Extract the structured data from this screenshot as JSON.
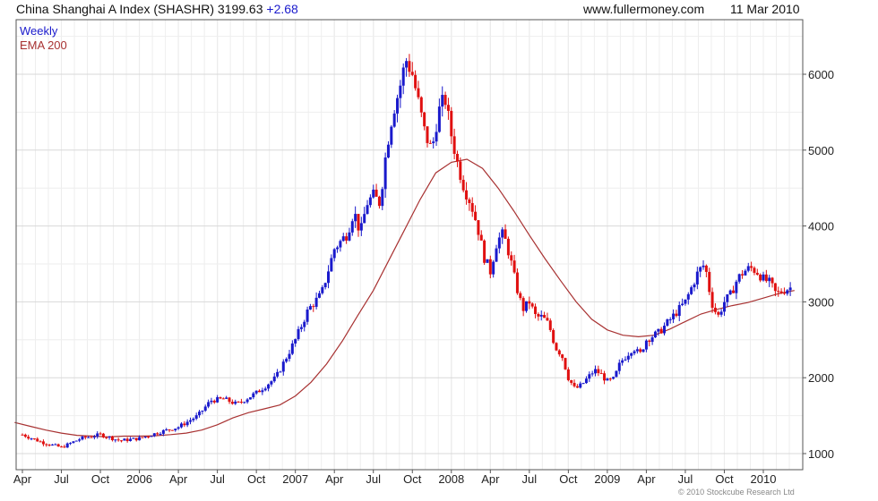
{
  "header": {
    "title": "China Shanghai A Index (SHASHR) 3199.63",
    "change": "+2.68",
    "site": "www.fullermoney.com",
    "date": "11 Mar 2010"
  },
  "legend": {
    "weekly": "Weekly",
    "ema": "EMA 200"
  },
  "copyright": "© 2010 Stockcube Research Ltd",
  "colors": {
    "up": "#1a1acc",
    "down": "#e01010",
    "ema": "#a83232",
    "grid": "#d8d8d8",
    "frame": "#555555"
  },
  "chart_data": {
    "type": "candlestick",
    "title": "China Shanghai A Index (SHASHR) 3199.63 +2.68",
    "frequency": "Weekly",
    "x_ticks": [
      "Apr",
      "Jul",
      "Oct",
      "2006",
      "Apr",
      "Jul",
      "Oct",
      "2007",
      "Apr",
      "Jul",
      "Oct",
      "2008",
      "Apr",
      "Jul",
      "Oct",
      "2009",
      "Apr",
      "Jul",
      "Oct",
      "2010"
    ],
    "y_ticks": [
      "1000",
      "2000",
      "3000",
      "4000",
      "5000",
      "6000"
    ],
    "ylim": [
      850,
      6700
    ],
    "y_axis_side": "right",
    "grid": true,
    "series": [
      {
        "name": "Weekly",
        "kind": "close",
        "x": [
          2005.25,
          2005.375,
          2005.5,
          2005.625,
          2005.75,
          2005.875,
          2006.0,
          2006.125,
          2006.25,
          2006.375,
          2006.458,
          2006.542,
          2006.625,
          2006.75,
          2006.875,
          2007.0,
          2007.083,
          2007.125,
          2007.167,
          2007.25,
          2007.333,
          2007.375,
          2007.417,
          2007.458,
          2007.5,
          2007.542,
          2007.583,
          2007.625,
          2007.667,
          2007.708,
          2007.75,
          2007.792,
          2007.833,
          2007.875,
          2007.917,
          2007.958,
          2008.0,
          2008.042,
          2008.083,
          2008.125,
          2008.167,
          2008.208,
          2008.25,
          2008.292,
          2008.333,
          2008.375,
          2008.417,
          2008.458,
          2008.5,
          2008.542,
          2008.583,
          2008.625,
          2008.667,
          2008.708,
          2008.75,
          2008.792,
          2008.833,
          2008.875,
          2008.917,
          2008.958,
          2009.0,
          2009.042,
          2009.083,
          2009.125,
          2009.167,
          2009.208,
          2009.25,
          2009.333,
          2009.417,
          2009.5,
          2009.542,
          2009.583,
          2009.625,
          2009.667,
          2009.708,
          2009.75,
          2009.792,
          2009.833,
          2009.875,
          2009.917,
          2009.958,
          2010.0,
          2010.042,
          2010.083,
          2010.125,
          2010.19
        ],
        "values": [
          1250,
          1150,
          1080,
          1200,
          1250,
          1170,
          1200,
          1280,
          1350,
          1500,
          1700,
          1720,
          1650,
          1800,
          2000,
          2500,
          2900,
          3000,
          3100,
          3700,
          3900,
          4200,
          3900,
          4300,
          4400,
          4300,
          5000,
          5500,
          5800,
          6200,
          6000,
          5600,
          5200,
          5000,
          5500,
          5700,
          5200,
          4800,
          4500,
          4300,
          4000,
          3600,
          3400,
          3800,
          3900,
          3600,
          3200,
          2900,
          3000,
          2800,
          2800,
          2700,
          2400,
          2300,
          2000,
          1850,
          1900,
          2000,
          2100,
          2050,
          1950,
          1980,
          2200,
          2300,
          2400,
          2300,
          2500,
          2600,
          2800,
          3000,
          3200,
          3400,
          3500,
          3000,
          2800,
          3000,
          3100,
          3300,
          3400,
          3450,
          3400,
          3300,
          3250,
          3100,
          3150,
          3200
        ]
      },
      {
        "name": "EMA 200",
        "kind": "line",
        "x": [
          2005.2,
          2005.3,
          2005.4,
          2005.5,
          2005.6,
          2005.7,
          2005.8,
          2005.9,
          2006.0,
          2006.1,
          2006.2,
          2006.3,
          2006.4,
          2006.5,
          2006.6,
          2006.7,
          2006.8,
          2006.9,
          2007.0,
          2007.1,
          2007.2,
          2007.3,
          2007.4,
          2007.5,
          2007.6,
          2007.7,
          2007.8,
          2007.9,
          2008.0,
          2008.1,
          2008.2,
          2008.3,
          2008.4,
          2008.5,
          2008.6,
          2008.7,
          2008.8,
          2008.9,
          2009.0,
          2009.1,
          2009.2,
          2009.3,
          2009.4,
          2009.5,
          2009.6,
          2009.7,
          2009.8,
          2009.9,
          2010.0,
          2010.1,
          2010.2
        ],
        "values": [
          1410,
          1360,
          1310,
          1270,
          1240,
          1230,
          1220,
          1230,
          1230,
          1235,
          1250,
          1270,
          1310,
          1380,
          1470,
          1540,
          1590,
          1640,
          1760,
          1940,
          2180,
          2480,
          2820,
          3150,
          3550,
          3950,
          4350,
          4700,
          4840,
          4880,
          4760,
          4500,
          4200,
          3880,
          3570,
          3280,
          3000,
          2770,
          2630,
          2560,
          2540,
          2560,
          2640,
          2740,
          2840,
          2900,
          2950,
          2990,
          3050,
          3110,
          3150
        ]
      }
    ]
  }
}
